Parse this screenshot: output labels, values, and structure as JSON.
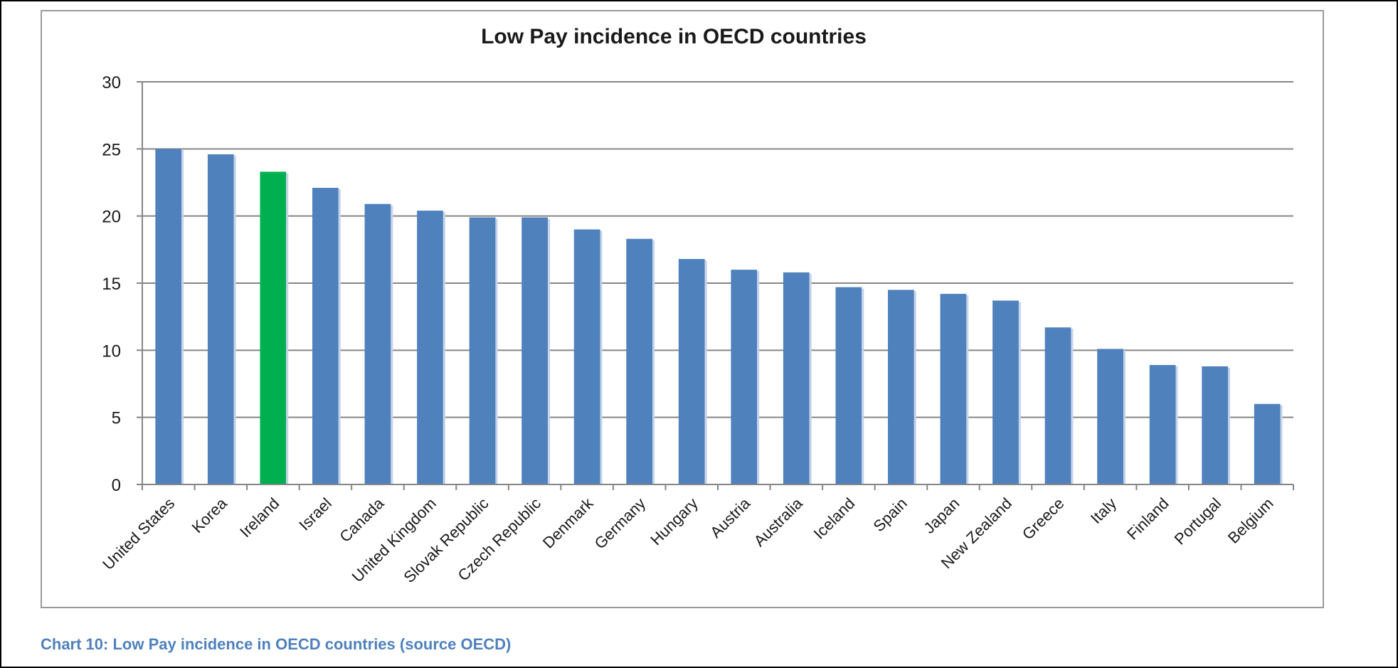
{
  "chart_data": {
    "type": "bar",
    "title": "Low Pay incidence in OECD countries",
    "xlabel": "",
    "ylabel": "",
    "ylim": [
      0,
      30
    ],
    "yticks": [
      0,
      5,
      10,
      15,
      20,
      25,
      30
    ],
    "grid": true,
    "legend": "none",
    "categories": [
      "United States",
      "Korea",
      "Ireland",
      "Israel",
      "Canada",
      "United Kingdom",
      "Slovak Republic",
      "Czech Republic",
      "Denmark",
      "Germany",
      "Hungary",
      "Austria",
      "Australia",
      "Iceland",
      "Spain",
      "Japan",
      "New Zealand",
      "Greece",
      "Italy",
      "Finland",
      "Portugal",
      "Belgium"
    ],
    "values": [
      25.0,
      24.6,
      23.3,
      22.1,
      20.9,
      20.4,
      19.9,
      19.9,
      19.0,
      18.3,
      16.8,
      16.0,
      15.8,
      14.7,
      14.5,
      14.2,
      13.7,
      11.7,
      10.1,
      8.9,
      8.8,
      6.0
    ],
    "highlight": {
      "category": "Ireland",
      "color": "#00b050"
    },
    "colors": {
      "bar": "#4f81bd",
      "grid": "#868686",
      "axis": "#868686"
    }
  },
  "caption": "Chart 10: Low Pay incidence in OECD countries (source OECD)"
}
